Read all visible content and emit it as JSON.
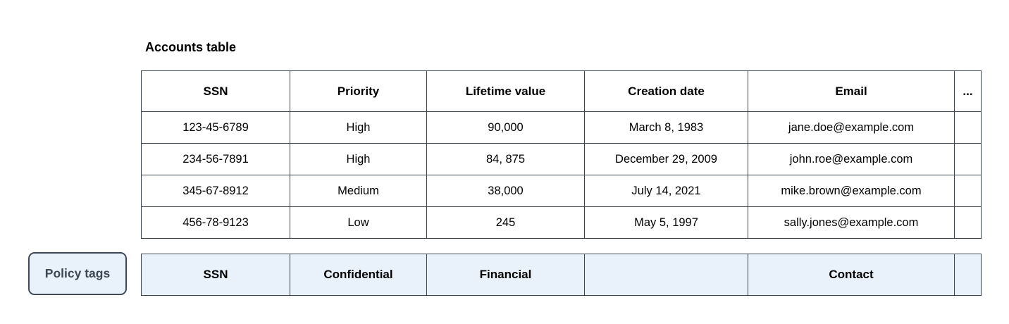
{
  "page": {
    "title": "Accounts table"
  },
  "table": {
    "columns": [
      {
        "label": "SSN"
      },
      {
        "label": "Priority"
      },
      {
        "label": "Lifetime value"
      },
      {
        "label": "Creation date"
      },
      {
        "label": "Email"
      },
      {
        "label": "..."
      }
    ],
    "rows": [
      {
        "ssn": "123-45-6789",
        "priority": "High",
        "lifetime_value": "90,000",
        "creation_date": "March 8, 1983",
        "email": "jane.doe@example.com",
        "more": ""
      },
      {
        "ssn": "234-56-7891",
        "priority": "High",
        "lifetime_value": "84, 875",
        "creation_date": "December 29, 2009",
        "email": "john.roe@example.com",
        "more": ""
      },
      {
        "ssn": "345-67-8912",
        "priority": "Medium",
        "lifetime_value": "38,000",
        "creation_date": "July 14, 2021",
        "email": "mike.brown@example.com",
        "more": ""
      },
      {
        "ssn": "456-78-9123",
        "priority": "Low",
        "lifetime_value": "245",
        "creation_date": "May 5, 1997",
        "email": "sally.jones@example.com",
        "more": ""
      }
    ]
  },
  "policy": {
    "button_label": "Policy tags",
    "tags": [
      {
        "label": "SSN"
      },
      {
        "label": "Confidential"
      },
      {
        "label": "Financial"
      },
      {
        "label": ""
      },
      {
        "label": "Contact"
      },
      {
        "label": ""
      }
    ]
  },
  "colors": {
    "table_border": "#3b434e",
    "policy_tag_background": "#e9f1fb",
    "policy_button_border": "#3f4957",
    "policy_button_text": "#3c4754"
  }
}
